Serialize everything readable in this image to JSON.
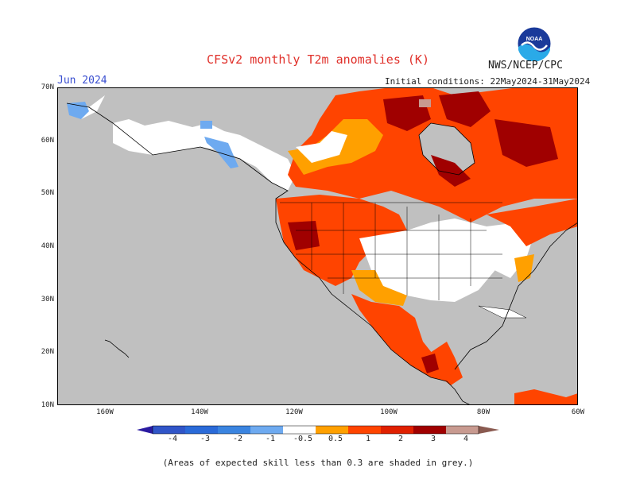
{
  "title": "CFSv2 monthly T2m anomalies (K)",
  "agency": "NWS/NCEP/CPC",
  "logo_text": "NOAA",
  "month": "Jun 2024",
  "initial_conditions": "Initial conditions: 22May2024-31May2024",
  "lat_labels": [
    "70N",
    "60N",
    "50N",
    "40N",
    "30N",
    "20N",
    "10N"
  ],
  "lon_labels": [
    "160W",
    "140W",
    "120W",
    "100W",
    "80W",
    "60W"
  ],
  "colorbar": {
    "labels": [
      "-4",
      "-3",
      "-2",
      "-1",
      "-0.5",
      "0.5",
      "1",
      "2",
      "3",
      "4"
    ],
    "colors": [
      "#2a1aa0",
      "#3055c8",
      "#3a84e0",
      "#6eaaf0",
      "#ffffff",
      "#ffa000",
      "#ff4400",
      "#e02000",
      "#a00000",
      "#c89a90",
      "#8a5a50"
    ]
  },
  "note": "(Areas of expected skill less than 0.3 are shaded in grey.)",
  "colors": {
    "title": "#e0302a",
    "month": "#3a4fd0",
    "ocean_grey": "#c0c0c0"
  }
}
